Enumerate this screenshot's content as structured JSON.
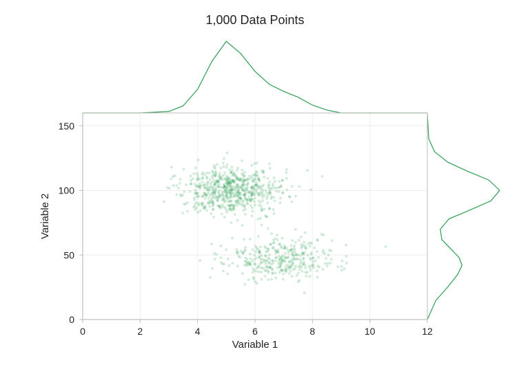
{
  "chart_data": {
    "type": "scatter",
    "title": "1,000 Data Points",
    "xlabel": "Variable 1",
    "ylabel": "Variable 2",
    "xlim": [
      0,
      12
    ],
    "ylim": [
      0,
      160
    ],
    "x_ticks": [
      "0",
      "2",
      "4",
      "6",
      "8",
      "10",
      "12"
    ],
    "y_ticks": [
      "0",
      "50",
      "100",
      "150"
    ],
    "grid": true,
    "point_color": "#2e9e55",
    "point_opacity": 0.2,
    "n_points": 1000,
    "clusters": [
      {
        "center_x": 5.2,
        "center_y": 100,
        "sd_x": 0.9,
        "sd_y": 10,
        "n": 650
      },
      {
        "center_x": 6.8,
        "center_y": 47,
        "sd_x": 1.0,
        "sd_y": 8,
        "n": 350
      }
    ],
    "marginal_x_density": {
      "x": [
        2.0,
        3.0,
        3.5,
        4.0,
        4.5,
        5.0,
        5.5,
        6.0,
        6.5,
        7.0,
        7.5,
        8.0,
        8.5,
        9.0
      ],
      "density": [
        0.0,
        0.02,
        0.1,
        0.33,
        0.72,
        1.0,
        0.83,
        0.58,
        0.4,
        0.3,
        0.22,
        0.11,
        0.04,
        0.0
      ]
    },
    "marginal_y_density": {
      "y": [
        0,
        15,
        25,
        35,
        42,
        48,
        55,
        62,
        70,
        78,
        85,
        92,
        100,
        108,
        115,
        122,
        130,
        140,
        160
      ],
      "density": [
        0.0,
        0.12,
        0.28,
        0.42,
        0.48,
        0.44,
        0.32,
        0.2,
        0.18,
        0.3,
        0.6,
        0.88,
        1.0,
        0.85,
        0.55,
        0.28,
        0.1,
        0.02,
        0.0
      ]
    }
  }
}
